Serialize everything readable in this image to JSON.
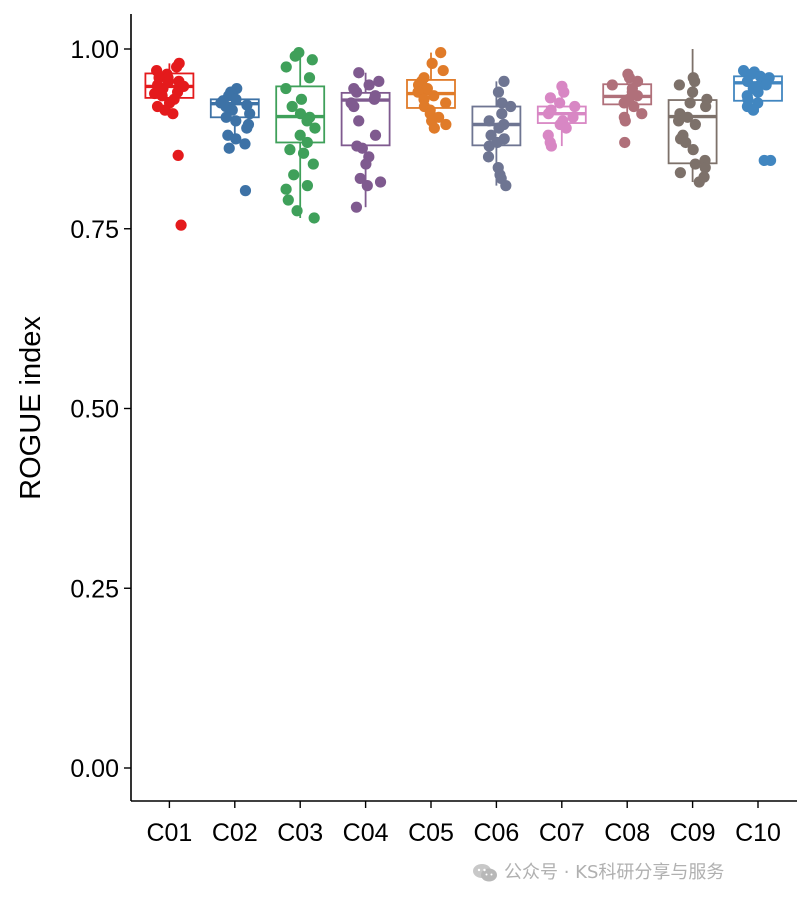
{
  "watermark": {
    "text": "公众号 · KS科研分享与服务",
    "icon": "wechat-icon"
  },
  "chart_data": {
    "type": "boxplot",
    "title": "",
    "xlabel": "",
    "ylabel": "ROGUE index",
    "ylim": [
      -0.045,
      1.05
    ],
    "yticks": [
      "0.00",
      "0.25",
      "0.50",
      "0.75",
      "1.00"
    ],
    "grid": false,
    "categories": [
      "C01",
      "C02",
      "C03",
      "C04",
      "C05",
      "C06",
      "C07",
      "C08",
      "C09",
      "C10"
    ],
    "colors": [
      "#e41a1c",
      "#3d72a6",
      "#3fa05a",
      "#7f5a8f",
      "#e07b29",
      "#6e7592",
      "#d887c4",
      "#b0707a",
      "#7d716a",
      "#4186c0"
    ],
    "boxes": [
      {
        "q1": 0.932,
        "median": 0.948,
        "q3": 0.966,
        "whisker_low": 0.91,
        "whisker_high": 0.98
      },
      {
        "q1": 0.905,
        "median": 0.924,
        "q3": 0.93,
        "whisker_low": 0.87,
        "whisker_high": 0.945
      },
      {
        "q1": 0.87,
        "median": 0.906,
        "q3": 0.948,
        "whisker_low": 0.765,
        "whisker_high": 0.995
      },
      {
        "q1": 0.866,
        "median": 0.929,
        "q3": 0.939,
        "whisker_low": 0.78,
        "whisker_high": 0.967
      },
      {
        "q1": 0.918,
        "median": 0.938,
        "q3": 0.957,
        "whisker_low": 0.89,
        "whisker_high": 0.995
      },
      {
        "q1": 0.866,
        "median": 0.895,
        "q3": 0.92,
        "whisker_low": 0.81,
        "whisker_high": 0.955
      },
      {
        "q1": 0.897,
        "median": 0.91,
        "q3": 0.92,
        "whisker_low": 0.865,
        "whisker_high": 0.945
      },
      {
        "q1": 0.923,
        "median": 0.934,
        "q3": 0.951,
        "whisker_low": 0.9,
        "whisker_high": 0.965
      },
      {
        "q1": 0.841,
        "median": 0.906,
        "q3": 0.929,
        "whisker_low": 0.815,
        "whisker_high": 1.0
      },
      {
        "q1": 0.928,
        "median": 0.953,
        "q3": 0.962,
        "whisker_low": 0.912,
        "whisker_high": 0.97
      }
    ],
    "points": [
      [
        0.975,
        0.97,
        0.965,
        0.98,
        0.96,
        0.955,
        0.95,
        0.948,
        0.945,
        0.94,
        0.938,
        0.935,
        0.93,
        0.925,
        0.92,
        0.915,
        0.91,
        0.96,
        0.955,
        0.945,
        0.852,
        0.755
      ],
      [
        0.945,
        0.94,
        0.935,
        0.93,
        0.928,
        0.925,
        0.922,
        0.92,
        0.915,
        0.91,
        0.905,
        0.9,
        0.895,
        0.89,
        0.88,
        0.875,
        0.868,
        0.862,
        0.803
      ],
      [
        0.995,
        0.99,
        0.985,
        0.975,
        0.96,
        0.945,
        0.93,
        0.92,
        0.91,
        0.905,
        0.9,
        0.89,
        0.88,
        0.87,
        0.86,
        0.855,
        0.84,
        0.825,
        0.81,
        0.805,
        0.79,
        0.775,
        0.765
      ],
      [
        0.967,
        0.955,
        0.95,
        0.945,
        0.94,
        0.935,
        0.93,
        0.925,
        0.92,
        0.9,
        0.88,
        0.865,
        0.862,
        0.85,
        0.84,
        0.82,
        0.815,
        0.81,
        0.78
      ],
      [
        0.995,
        0.98,
        0.97,
        0.96,
        0.955,
        0.95,
        0.945,
        0.94,
        0.935,
        0.93,
        0.925,
        0.92,
        0.915,
        0.91,
        0.905,
        0.9,
        0.895,
        0.89
      ],
      [
        0.955,
        0.94,
        0.925,
        0.92,
        0.91,
        0.9,
        0.895,
        0.89,
        0.88,
        0.875,
        0.87,
        0.865,
        0.85,
        0.835,
        0.825,
        0.82,
        0.81
      ],
      [
        0.948,
        0.94,
        0.932,
        0.925,
        0.92,
        0.915,
        0.91,
        0.905,
        0.9,
        0.895,
        0.89,
        0.88,
        0.87,
        0.865
      ],
      [
        0.965,
        0.96,
        0.955,
        0.95,
        0.945,
        0.94,
        0.935,
        0.93,
        0.925,
        0.92,
        0.91,
        0.905,
        0.9,
        0.87
      ],
      [
        0.96,
        0.955,
        0.95,
        0.94,
        0.93,
        0.925,
        0.92,
        0.91,
        0.905,
        0.9,
        0.895,
        0.88,
        0.875,
        0.87,
        0.86,
        0.845,
        0.84,
        0.835,
        0.828,
        0.822,
        0.815
      ],
      [
        0.97,
        0.968,
        0.965,
        0.962,
        0.96,
        0.958,
        0.955,
        0.952,
        0.95,
        0.945,
        0.94,
        0.935,
        0.93,
        0.925,
        0.92,
        0.915,
        0.845,
        0.845
      ]
    ]
  }
}
